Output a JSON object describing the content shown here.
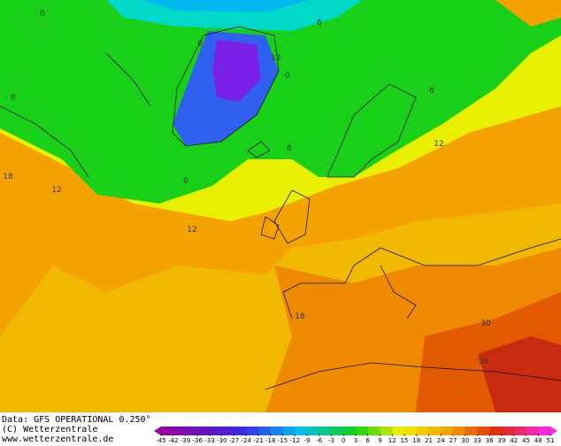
{
  "map": {
    "contour_labels": [
      0,
      6,
      0,
      12,
      0,
      6,
      6,
      12,
      6,
      6,
      18,
      12,
      12,
      18,
      30,
      36
    ]
  },
  "footer": {
    "source": "Data: GFS OPERATIONAL 0.250°",
    "copyright": "(C) Wetterzentrale",
    "url": "www.wetterzentrale.de"
  },
  "colorbar": {
    "ticks": [
      -45,
      -42,
      -39,
      -36,
      -33,
      -30,
      -27,
      -24,
      -21,
      -18,
      -15,
      -12,
      -9,
      -6,
      -3,
      0,
      3,
      6,
      9,
      12,
      15,
      18,
      21,
      24,
      27,
      30,
      33,
      36,
      39,
      42,
      45,
      48,
      51
    ]
  }
}
